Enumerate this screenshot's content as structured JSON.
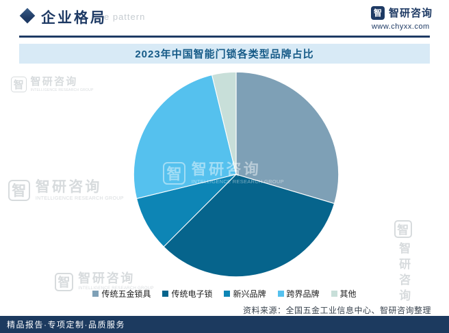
{
  "header": {
    "section_title": "企业格局",
    "watermark_text": "e pattern",
    "brand_name": "智研咨询",
    "brand_url": "www.chyxx.com"
  },
  "chart_data": {
    "type": "pie",
    "title": "2023年中国智能门锁各类型品牌占比",
    "unit": "%",
    "direction": "clockwise",
    "start_angle_deg": 0,
    "legend_position": "bottom",
    "series": [
      {
        "label": "传统五金锁具",
        "value": 29.6,
        "color": "#7EA0B6"
      },
      {
        "label": "传统电子锁",
        "value": 32.9,
        "color": "#06648C"
      },
      {
        "label": "新兴品牌",
        "value": 8.7,
        "color": "#0D85B5"
      },
      {
        "label": "跨界品牌",
        "value": 25.0,
        "color": "#55C1EE"
      },
      {
        "label": "其他",
        "value": 3.8,
        "color": "#C8DFD9"
      }
    ]
  },
  "watermark": {
    "logo_glyph": "智",
    "brand": "智研咨询",
    "subtext": "INTELLIGENCE RESEARCH GROUP"
  },
  "footer": {
    "source_text": "资料来源：全国五金工业信息中心、智研咨询整理",
    "tagline": "精品报告·专项定制·品质服务"
  },
  "colors": {
    "navy": "#1E3A64",
    "title_bar_bg": "#D8EAF6",
    "title_text": "#155A87",
    "footer_bg": "#1C3A5F"
  }
}
